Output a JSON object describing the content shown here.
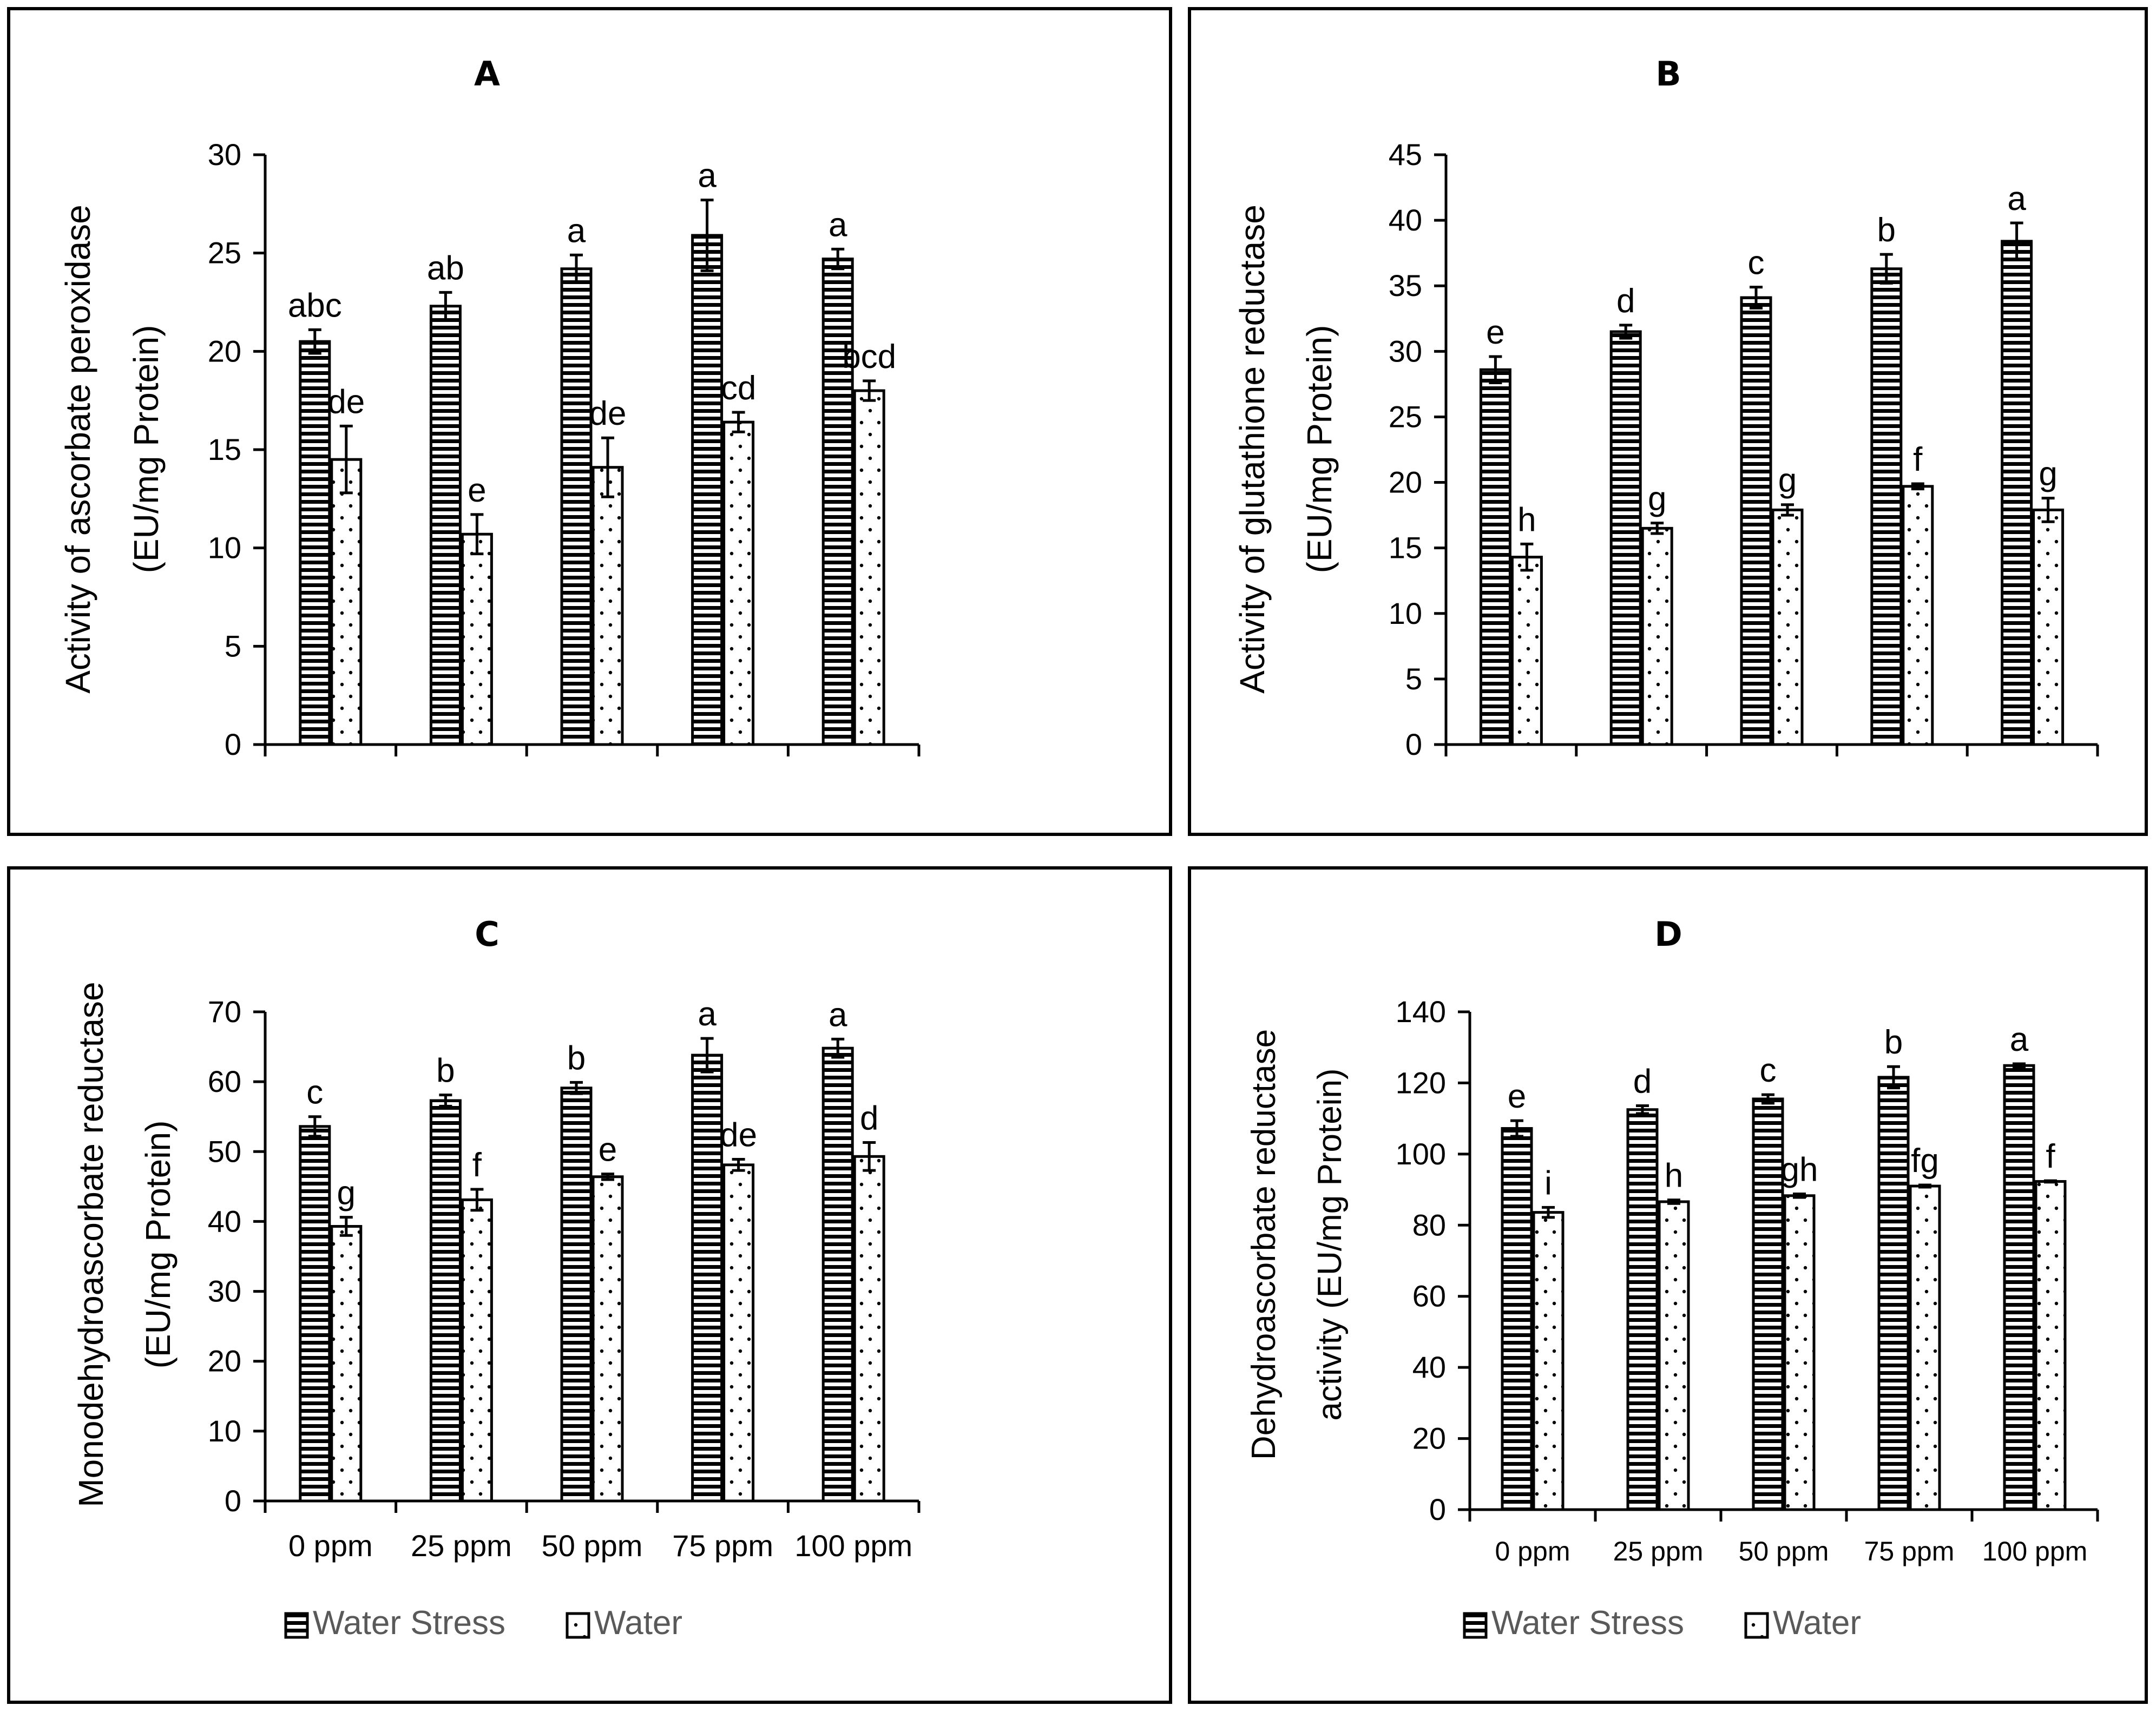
{
  "legend": {
    "series": [
      "Water Stress",
      "Water"
    ]
  },
  "colors": {
    "stroke": "#000000",
    "background": "#ffffff",
    "legend_text": "#595959"
  },
  "chart_data": [
    {
      "panel": "A",
      "type": "bar",
      "title": "A",
      "ylabel_lines": [
        "Activity of ascorbate peroxidase",
        "(EU/mg Protein)"
      ],
      "xlabel": "",
      "categories": [
        "0 ppm",
        "25 ppm",
        "50 ppm",
        "75 ppm",
        "100 ppm"
      ],
      "show_category_labels": false,
      "ylim": [
        0,
        30
      ],
      "yticks": [
        0,
        5,
        10,
        15,
        20,
        25,
        30
      ],
      "series": [
        {
          "name": "Water Stress",
          "values": [
            20.5,
            22.3,
            24.2,
            25.9,
            24.7
          ],
          "errors": [
            0.6,
            0.7,
            0.7,
            1.8,
            0.5
          ],
          "labels": [
            "abc",
            "ab",
            "a",
            "a",
            "a"
          ]
        },
        {
          "name": "Water",
          "values": [
            14.5,
            10.7,
            14.1,
            16.4,
            18.0
          ],
          "errors": [
            1.7,
            1.0,
            1.5,
            0.5,
            0.5
          ],
          "labels": [
            "de",
            "e",
            "de",
            "cd",
            "bcd"
          ]
        }
      ]
    },
    {
      "panel": "B",
      "type": "bar",
      "title": "B",
      "ylabel_lines": [
        "Activity of glutathione reductase",
        "(EU/mg Protein)"
      ],
      "xlabel": "",
      "categories": [
        "0 ppm",
        "25 ppm",
        "50 ppm",
        "75 ppm",
        "100 ppm"
      ],
      "show_category_labels": false,
      "ylim": [
        0,
        45
      ],
      "yticks": [
        0,
        5,
        10,
        15,
        20,
        25,
        30,
        35,
        40,
        45
      ],
      "series": [
        {
          "name": "Water Stress",
          "values": [
            28.6,
            31.5,
            34.1,
            36.3,
            38.4
          ],
          "errors": [
            1.0,
            0.5,
            0.8,
            1.1,
            1.4
          ],
          "labels": [
            "e",
            "d",
            "c",
            "b",
            "a"
          ]
        },
        {
          "name": "Water",
          "values": [
            14.3,
            16.5,
            17.9,
            19.7,
            17.9
          ],
          "errors": [
            1.0,
            0.4,
            0.4,
            0.2,
            0.9
          ],
          "labels": [
            "h",
            "g",
            "g",
            "f",
            "g"
          ]
        }
      ]
    },
    {
      "panel": "C",
      "type": "bar",
      "title": "C",
      "ylabel_lines": [
        "Monodehydroascorbate reductase",
        "(EU/mg Protein)"
      ],
      "xlabel": "",
      "categories": [
        "0 ppm",
        "25 ppm",
        "50 ppm",
        "75 ppm",
        "100 ppm"
      ],
      "show_category_labels": true,
      "ylim": [
        0,
        70
      ],
      "yticks": [
        0,
        10,
        20,
        30,
        40,
        50,
        60,
        70
      ],
      "series": [
        {
          "name": "Water Stress",
          "values": [
            53.6,
            57.3,
            59.1,
            63.8,
            64.8
          ],
          "errors": [
            1.4,
            0.8,
            0.8,
            2.4,
            1.3
          ],
          "labels": [
            "c",
            "b",
            "b",
            "a",
            "a"
          ]
        },
        {
          "name": "Water",
          "values": [
            39.3,
            43.1,
            46.4,
            48.1,
            49.3
          ],
          "errors": [
            1.3,
            1.5,
            0.4,
            0.8,
            2.0
          ],
          "labels": [
            "g",
            "f",
            "e",
            "de",
            "d"
          ]
        }
      ]
    },
    {
      "panel": "D",
      "type": "bar",
      "title": "D",
      "ylabel_lines": [
        "Dehydroascorbate reductase",
        "activity (EU/mg Protein)"
      ],
      "xlabel": "",
      "categories": [
        "0 ppm",
        "25 ppm",
        "50 ppm",
        "75 ppm",
        "100 ppm"
      ],
      "show_category_labels": true,
      "ylim": [
        0,
        140
      ],
      "yticks": [
        0,
        20,
        40,
        60,
        80,
        100,
        120,
        140
      ],
      "series": [
        {
          "name": "Water Stress",
          "values": [
            107.2,
            112.5,
            115.5,
            121.6,
            124.9
          ],
          "errors": [
            2.2,
            1.1,
            1.2,
            3.0,
            0.5
          ],
          "labels": [
            "e",
            "d",
            "c",
            "b",
            "a"
          ]
        },
        {
          "name": "Water",
          "values": [
            83.6,
            86.6,
            88.3,
            91.0,
            92.3
          ],
          "errors": [
            1.4,
            0.5,
            0.5,
            0.3,
            0.2
          ],
          "labels": [
            "i",
            "h",
            "gh",
            "fg",
            "f"
          ]
        }
      ]
    }
  ]
}
